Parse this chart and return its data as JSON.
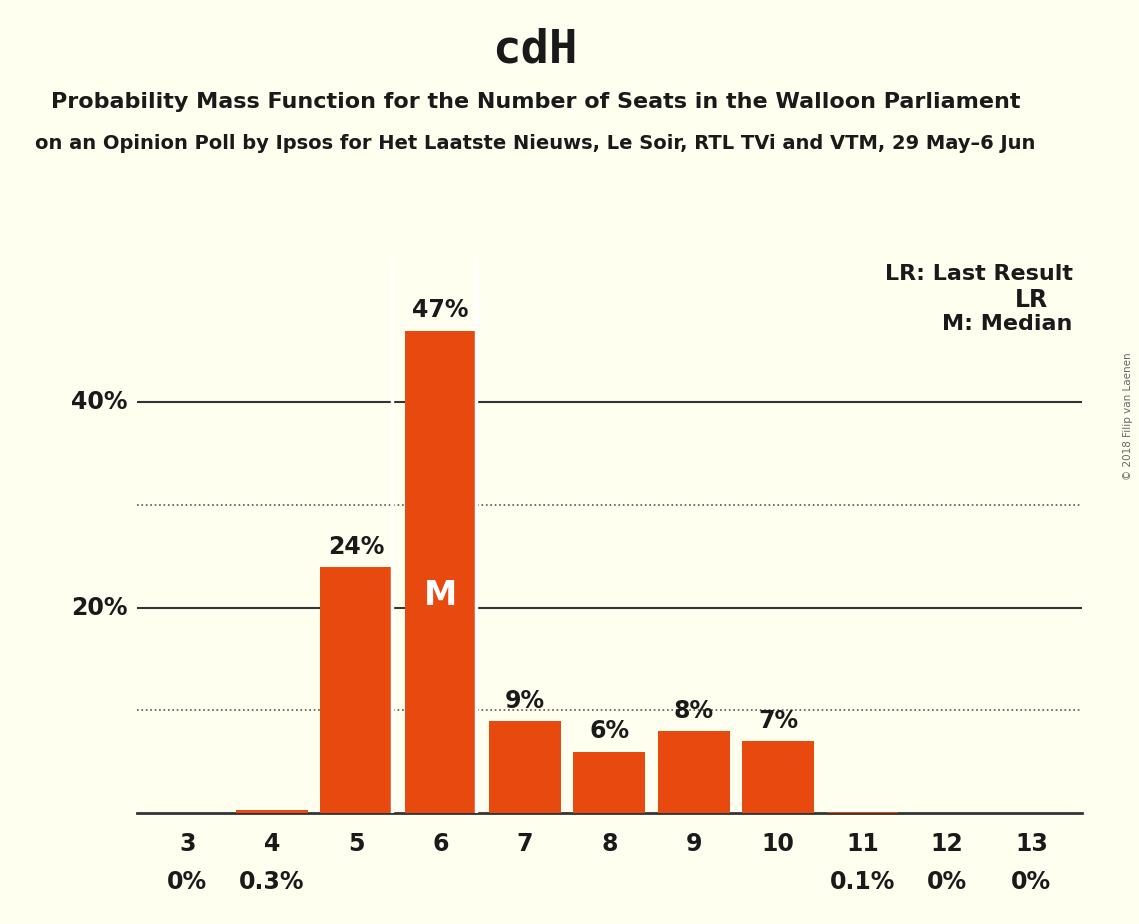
{
  "title": "cdH",
  "subtitle1": "Probability Mass Function for the Number of Seats in the Walloon Parliament",
  "subtitle2": "on an Opinion Poll by Ipsos for Het Laatste Nieuws, Le Soir, RTL TVi and VTM, 29 May–6 Jun",
  "copyright": "© 2018 Filip van Laenen",
  "categories": [
    3,
    4,
    5,
    6,
    7,
    8,
    9,
    10,
    11,
    12,
    13
  ],
  "values": [
    0.0,
    0.3,
    24.0,
    47.0,
    9.0,
    6.0,
    8.0,
    7.0,
    0.1,
    0.0,
    0.0
  ],
  "labels": [
    "0%",
    "0.3%",
    "24%",
    "47%",
    "9%",
    "6%",
    "8%",
    "7%",
    "0.1%",
    "0%",
    "0%"
  ],
  "bar_color": "#E8490F",
  "background_color": "#FFFFF0",
  "text_color": "#1a1a1a",
  "median_bar": 6,
  "lr_bar": 13,
  "dotted_lines": [
    10,
    30
  ],
  "solid_lines": [
    20,
    40
  ],
  "legend_lr": "LR: Last Result",
  "legend_m": "M: Median",
  "title_fontsize": 34,
  "subtitle1_fontsize": 16,
  "subtitle2_fontsize": 14,
  "bar_label_fontsize": 17,
  "axis_tick_fontsize": 17,
  "legend_fontsize": 16,
  "ylabel_20": "20%",
  "ylabel_40": "40%"
}
